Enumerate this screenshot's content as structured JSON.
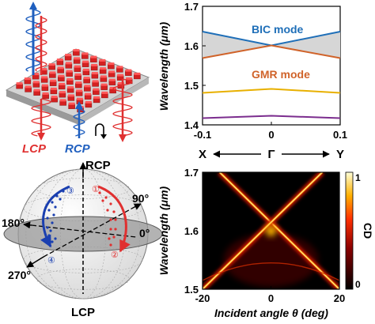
{
  "panel_a": {
    "lcp_label": "LCP",
    "rcp_label": "RCP"
  },
  "panel_b": {
    "ylabel": "Wavelength (μm)",
    "xticks": [
      "-0.1",
      "0",
      "0.1"
    ],
    "k_path_left": "X",
    "k_path_mid": "Γ",
    "k_path_right": "Y",
    "bic_label": "BIC mode",
    "gmr_label": "GMR mode",
    "colors": {
      "bic": "#1f6fb8",
      "gmr": "#d0632a",
      "yellow": "#e8b000",
      "purple": "#7b2d8e"
    }
  },
  "panel_c": {
    "north_label": "RCP",
    "south_label": "LCP",
    "angle_90": "90°",
    "angle_0": "0°",
    "angle_180": "180°",
    "angle_270": "270°",
    "markers": [
      "①",
      "②",
      "③",
      "④"
    ],
    "colors": {
      "blue_path": "#1a3fb0",
      "red_path": "#e03030"
    }
  },
  "panel_d": {
    "ylabel": "Wavelength (μm)",
    "xlabel": "Incident angle θ (deg)",
    "colorbar_label": "CD"
  },
  "chart_data": [
    {
      "type": "line",
      "title": "",
      "xlabel": "",
      "ylabel": "Wavelength (μm)",
      "xlim": [
        -0.1,
        0.1
      ],
      "ylim": [
        1.4,
        1.7
      ],
      "xticks": [
        -0.1,
        0,
        0.1
      ],
      "yticks": [
        1.4,
        1.5,
        1.6,
        1.7
      ],
      "series": [
        {
          "name": "BIC mode",
          "x": [
            -0.1,
            0,
            0.1
          ],
          "values": [
            1.636,
            1.601,
            1.636
          ]
        },
        {
          "name": "GMR mode",
          "x": [
            -0.1,
            0,
            0.1
          ],
          "values": [
            1.569,
            1.601,
            1.569
          ]
        },
        {
          "name": "",
          "x": [
            -0.1,
            0,
            0.1
          ],
          "values": [
            1.481,
            1.491,
            1.481
          ]
        },
        {
          "name": "",
          "x": [
            -0.1,
            0,
            0.1
          ],
          "values": [
            1.417,
            1.423,
            1.417
          ]
        }
      ]
    },
    {
      "type": "heatmap",
      "title": "",
      "xlabel": "Incident angle θ (deg)",
      "ylabel": "Wavelength (μm)",
      "xlim": [
        -20,
        20
      ],
      "ylim": [
        1.5,
        1.7
      ],
      "xticks": [
        -20,
        0,
        20
      ],
      "yticks": [
        1.5,
        1.6,
        1.7
      ],
      "colorbar": {
        "label": "CD",
        "ticks": [
          0,
          1
        ],
        "range": [
          0,
          1
        ]
      },
      "bands": [
        {
          "from": [
            -15,
            1.7
          ],
          "to": [
            20,
            1.5
          ]
        },
        {
          "from": [
            15,
            1.7
          ],
          "to": [
            -20,
            1.5
          ]
        }
      ],
      "crossing": [
        0,
        1.6
      ]
    }
  ]
}
